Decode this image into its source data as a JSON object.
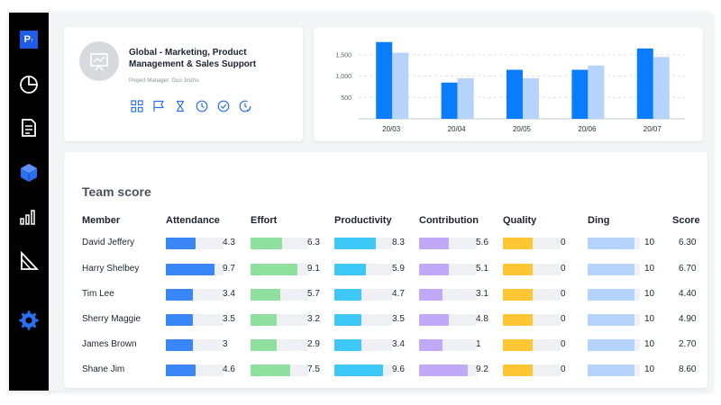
{
  "app": {
    "logo_text": "P"
  },
  "sidebar": {
    "items": [
      {
        "icon": "pie-chart-icon",
        "active": false
      },
      {
        "icon": "document-icon",
        "active": false
      },
      {
        "icon": "cube-icon",
        "active": true
      },
      {
        "icon": "bar-chart-icon",
        "active": false
      },
      {
        "icon": "ruler-triangle-icon",
        "active": false
      },
      {
        "icon": "gear-icon",
        "active": true
      }
    ],
    "active_color": "#2c6ff0"
  },
  "project": {
    "title": "Global - Marketing, Product Management & Sales Support",
    "manager": "Project Manager: Guo Jinzhu",
    "icons": [
      "grid-icon",
      "flag-icon",
      "hourglass-icon",
      "clock-icon",
      "check-circle-icon",
      "clock-check-icon"
    ]
  },
  "chart_data": {
    "type": "bar",
    "categories": [
      "20/03",
      "20/04",
      "20/05",
      "20/06",
      "20/07"
    ],
    "series": [
      {
        "values": [
          1800,
          850,
          1150,
          1150,
          1650
        ],
        "color": "#0a7cff"
      },
      {
        "values": [
          1550,
          950,
          950,
          1250,
          1450
        ],
        "color": "#b5d3fb"
      }
    ],
    "yticks": [
      "500",
      "1,000",
      "1,500"
    ],
    "ytick_values": [
      500,
      1000,
      1500
    ],
    "ylim": [
      0,
      1900
    ],
    "grid": true
  },
  "team": {
    "title": "Team score",
    "columns": [
      "Member",
      "Attendance",
      "Effort",
      "Productivity",
      "Contribution",
      "Quality",
      "Ding",
      "Score"
    ],
    "bar_colors": [
      "#3b86f7",
      "#8fe09e",
      "#3ec8f7",
      "#c1a9f7",
      "#ffc633",
      "#b5d3fb"
    ],
    "members": [
      {
        "name": "David Jeffery",
        "values": [
          "4.3",
          "6.3",
          "8.3",
          "5.6",
          "0",
          "10"
        ],
        "score": "6.30"
      },
      {
        "name": "Harry Shelbey",
        "values": [
          "9.7",
          "9.1",
          "5.9",
          "5.1",
          "0",
          "10"
        ],
        "score": "6.70"
      },
      {
        "name": "Tim Lee",
        "values": [
          "3.4",
          "5.7",
          "4.7",
          "3.1",
          "0",
          "10"
        ],
        "score": "4.40"
      },
      {
        "name": "Sherry Maggie",
        "values": [
          "3.5",
          "3.2",
          "3.5",
          "4.8",
          "0",
          "10"
        ],
        "score": "4.90"
      },
      {
        "name": "James Brown",
        "values": [
          "3",
          "2.9",
          "3.4",
          "1",
          "0",
          "10"
        ],
        "score": "2.70"
      },
      {
        "name": "Shane Jim",
        "values": [
          "4.6",
          "7.5",
          "9.6",
          "9.2",
          "0",
          "10"
        ],
        "score": "8.60"
      }
    ],
    "bar_fill_fractions": [
      [
        0.52,
        0.55,
        0.72,
        0.52,
        0.52,
        0.9
      ],
      [
        0.85,
        0.82,
        0.55,
        0.52,
        0.52,
        0.9
      ],
      [
        0.47,
        0.52,
        0.47,
        0.4,
        0.52,
        0.9
      ],
      [
        0.47,
        0.45,
        0.47,
        0.52,
        0.52,
        0.9
      ],
      [
        0.47,
        0.45,
        0.47,
        0.4,
        0.52,
        0.9
      ],
      [
        0.52,
        0.68,
        0.85,
        0.85,
        0.52,
        0.9
      ]
    ]
  }
}
